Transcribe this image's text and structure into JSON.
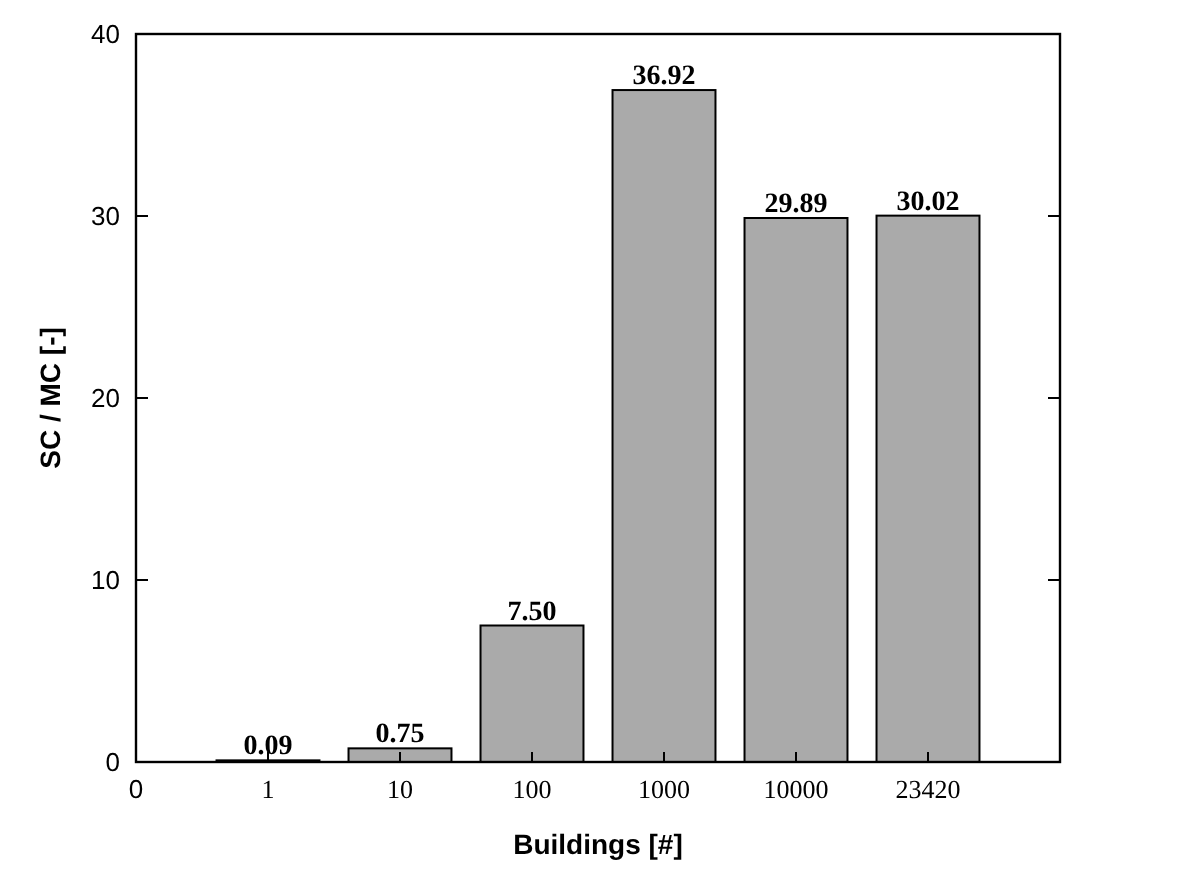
{
  "chart_data": {
    "type": "bar",
    "xlabel": "Buildings  [#]",
    "ylabel": "SC / MC [-]",
    "categories": [
      "0",
      "1",
      "10",
      "100",
      "1000",
      "10000",
      "23420"
    ],
    "values": [
      null,
      0.09,
      0.75,
      7.5,
      36.92,
      29.89,
      30.02
    ],
    "value_labels": [
      null,
      "0.09",
      "0.75",
      "7.50",
      "36.92",
      "29.89",
      "30.02"
    ],
    "color": "#aaaaaa",
    "ylim": [
      0,
      40
    ],
    "yticks": [
      0,
      10,
      20,
      30,
      40
    ],
    "grid": false
  }
}
